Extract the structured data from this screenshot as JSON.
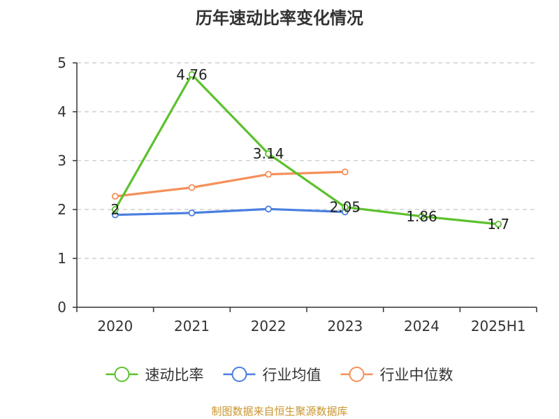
{
  "chart_data": {
    "type": "line",
    "title": "历年速动比率变化情况",
    "categories": [
      "2020",
      "2021",
      "2022",
      "2023",
      "2024",
      "2025H1"
    ],
    "ylim": [
      0,
      5
    ],
    "yticks": [
      "0",
      "1",
      "2",
      "3",
      "4",
      "5"
    ],
    "grid": true,
    "legend_position": "bottom",
    "series": [
      {
        "name": "速动比率",
        "color": "#5cc12c",
        "values": [
          2,
          4.76,
          3.14,
          2.05,
          1.86,
          1.7
        ],
        "labels": [
          "2",
          "4.76",
          "3.14",
          "2.05",
          "1.86",
          "1.7"
        ]
      },
      {
        "name": "行业均值",
        "color": "#4a7fe0",
        "values": [
          1.89,
          1.93,
          2.01,
          1.95,
          null,
          null
        ]
      },
      {
        "name": "行业中位数",
        "color": "#f5905a",
        "values": [
          2.27,
          2.45,
          2.72,
          2.77,
          null,
          null
        ]
      }
    ]
  },
  "source_note": "制图数据来自恒生聚源数据库"
}
